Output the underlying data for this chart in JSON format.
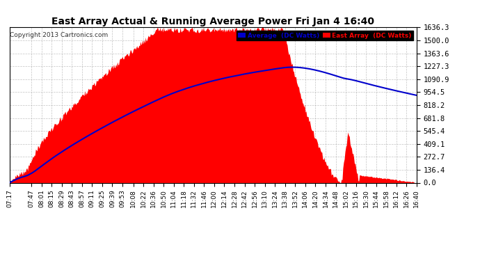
{
  "title": "East Array Actual & Running Average Power Fri Jan 4 16:40",
  "copyright": "Copyright 2013 Cartronics.com",
  "legend_avg": "Average  (DC Watts)",
  "legend_east": "East Array  (DC Watts)",
  "ylabel_values": [
    0.0,
    136.4,
    272.7,
    409.1,
    545.4,
    681.8,
    818.2,
    954.5,
    1090.9,
    1227.3,
    1363.6,
    1500.0,
    1636.3
  ],
  "ymax": 1636.3,
  "ymin": 0.0,
  "background_color": "#ffffff",
  "plot_bg_color": "#ffffff",
  "grid_color": "#aaaaaa",
  "east_array_color": "#ff0000",
  "average_color": "#0000cc",
  "title_color": "#000000",
  "x_tick_labels": [
    "07:17",
    "07:47",
    "08:01",
    "08:15",
    "08:29",
    "08:43",
    "08:57",
    "09:11",
    "09:25",
    "09:39",
    "09:53",
    "10:08",
    "10:22",
    "10:36",
    "10:50",
    "11:04",
    "11:18",
    "11:32",
    "11:46",
    "12:00",
    "12:14",
    "12:28",
    "12:42",
    "12:56",
    "13:10",
    "13:24",
    "13:38",
    "13:52",
    "14:06",
    "14:20",
    "14:34",
    "14:48",
    "15:02",
    "15:16",
    "15:30",
    "15:44",
    "15:58",
    "16:12",
    "16:26",
    "16:40"
  ]
}
